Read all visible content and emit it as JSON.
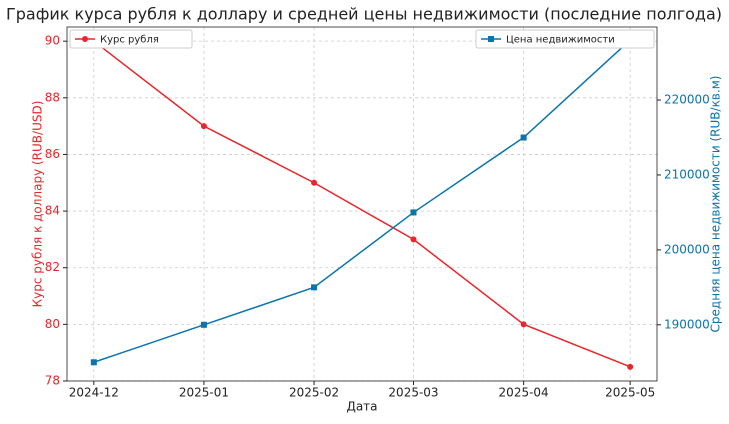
{
  "chart_data": {
    "type": "line",
    "title": "График курса рубля к доллару и средней цены недвижимости (последние полгода)",
    "x_label": "Дата",
    "y_label": "Курс рубля к доллару (RUB/USD)",
    "y2_label": "Средняя цена недвижимости (RUB/кв.м)",
    "categories": [
      "2024-12",
      "2025-01",
      "2025-02",
      "2025-03",
      "2025-04",
      "2025-05"
    ],
    "series": [
      {
        "name": "Курс рубля",
        "color": "#e8262b",
        "marker": "circle",
        "legend_loc": "upper left",
        "values": [
          90,
          87,
          85,
          83,
          80,
          78.5
        ]
      },
      {
        "name": "Цена недвижимости",
        "color": "#0a74ab",
        "marker": "square",
        "axis": "y2",
        "legend_loc": "upper right",
        "values": [
          185000,
          190000,
          195000,
          205000,
          215000,
          228000
        ]
      }
    ],
    "ylim": [
      78,
      90.5
    ],
    "yticks": [
      78,
      80,
      82,
      84,
      86,
      88,
      90
    ],
    "y2lim": [
      182500,
      229750
    ],
    "y2ticks": [
      190000,
      200000,
      210000,
      220000
    ],
    "grid": true
  }
}
